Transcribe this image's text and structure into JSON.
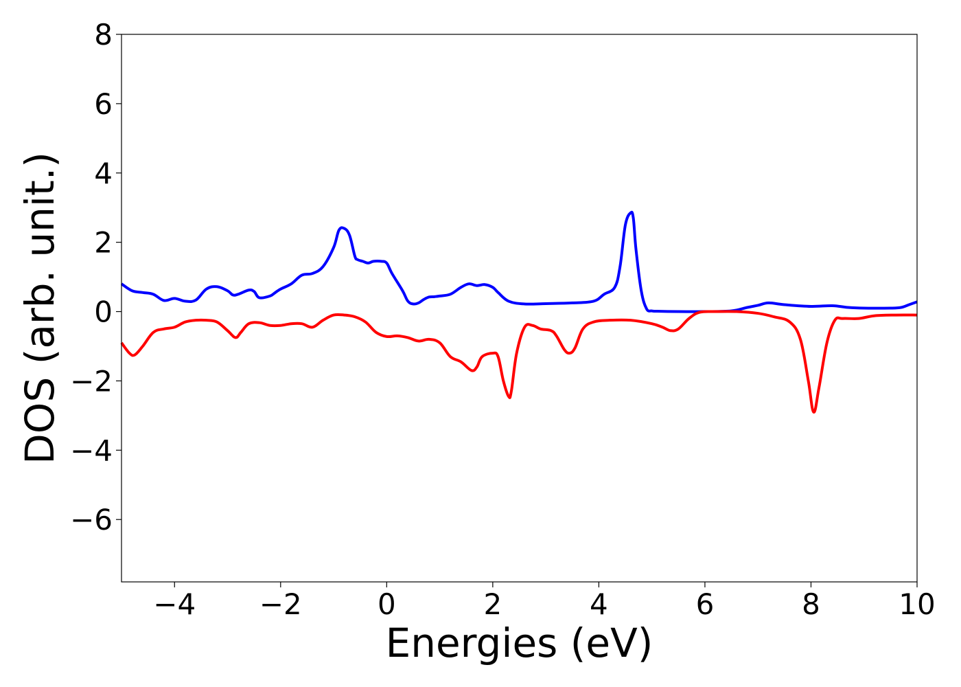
{
  "chart_data": {
    "type": "line",
    "title": "",
    "xlabel": "Energies (eV)",
    "ylabel": "DOS (arb. unit.)",
    "xlim": [
      -5,
      10
    ],
    "ylim": [
      -7.8,
      8.0
    ],
    "grid": false,
    "legend": "none",
    "x_ticks": [
      -4,
      -2,
      0,
      2,
      4,
      6,
      8,
      10
    ],
    "x_tick_labels": [
      "−4",
      "−2",
      "0",
      "2",
      "4",
      "6",
      "8",
      "10"
    ],
    "y_ticks": [
      -6,
      -4,
      -2,
      0,
      2,
      4,
      6,
      8
    ],
    "y_tick_labels": [
      "−6",
      "−4",
      "−2",
      "0",
      "2",
      "4",
      "6",
      "8"
    ],
    "series": [
      {
        "color": "#0000ff",
        "x": [
          -5.0,
          -4.8,
          -4.6,
          -4.4,
          -4.2,
          -4.0,
          -3.8,
          -3.6,
          -3.4,
          -3.2,
          -3.0,
          -2.9,
          -2.8,
          -2.6,
          -2.5,
          -2.4,
          -2.2,
          -2.1,
          -2.0,
          -1.8,
          -1.6,
          -1.4,
          -1.2,
          -1.0,
          -0.9,
          -0.8,
          -0.7,
          -0.6,
          -0.55,
          -0.45,
          -0.35,
          -0.25,
          -0.1,
          0.0,
          0.1,
          0.3,
          0.4,
          0.5,
          0.6,
          0.7,
          0.8,
          0.9,
          1.0,
          1.2,
          1.4,
          1.55,
          1.7,
          1.85,
          2.0,
          2.1,
          2.3,
          2.6,
          3.0,
          3.5,
          3.9,
          4.1,
          4.3,
          4.4,
          4.5,
          4.6,
          4.65,
          4.7,
          4.8,
          4.9,
          5.0,
          5.1,
          5.5,
          6.0,
          6.5,
          6.8,
          7.0,
          7.2,
          7.5,
          8.0,
          8.4,
          8.7,
          9.0,
          9.5,
          9.7,
          9.85,
          10.0
        ],
        "y": [
          0.8,
          0.6,
          0.55,
          0.5,
          0.32,
          0.38,
          0.3,
          0.33,
          0.65,
          0.72,
          0.6,
          0.48,
          0.5,
          0.62,
          0.58,
          0.4,
          0.45,
          0.55,
          0.65,
          0.8,
          1.05,
          1.1,
          1.3,
          1.85,
          2.35,
          2.4,
          2.2,
          1.6,
          1.5,
          1.45,
          1.4,
          1.45,
          1.45,
          1.4,
          1.1,
          0.6,
          0.3,
          0.22,
          0.25,
          0.35,
          0.42,
          0.43,
          0.45,
          0.5,
          0.7,
          0.8,
          0.75,
          0.78,
          0.7,
          0.55,
          0.3,
          0.22,
          0.23,
          0.25,
          0.3,
          0.5,
          0.7,
          1.3,
          2.5,
          2.85,
          2.7,
          1.8,
          0.6,
          0.08,
          0.02,
          0.01,
          0.0,
          0.0,
          0.02,
          0.12,
          0.18,
          0.25,
          0.2,
          0.15,
          0.17,
          0.12,
          0.1,
          0.1,
          0.12,
          0.2,
          0.28
        ]
      },
      {
        "color": "#ff0000",
        "x": [
          -5.0,
          -4.85,
          -4.75,
          -4.6,
          -4.4,
          -4.2,
          -4.0,
          -3.8,
          -3.6,
          -3.4,
          -3.2,
          -3.0,
          -2.85,
          -2.75,
          -2.6,
          -2.4,
          -2.2,
          -2.0,
          -1.8,
          -1.6,
          -1.4,
          -1.2,
          -1.0,
          -0.8,
          -0.6,
          -0.4,
          -0.2,
          0.0,
          0.2,
          0.4,
          0.6,
          0.8,
          1.0,
          1.2,
          1.4,
          1.6,
          1.7,
          1.8,
          2.0,
          2.1,
          2.2,
          2.3,
          2.35,
          2.45,
          2.6,
          2.75,
          2.9,
          3.1,
          3.2,
          3.35,
          3.45,
          3.55,
          3.7,
          3.9,
          4.2,
          4.6,
          5.0,
          5.2,
          5.35,
          5.5,
          5.7,
          5.9,
          6.2,
          6.6,
          7.0,
          7.3,
          7.6,
          7.8,
          7.95,
          8.05,
          8.15,
          8.3,
          8.45,
          8.6,
          8.9,
          9.2,
          9.6,
          10.0
        ],
        "y": [
          -0.9,
          -1.2,
          -1.25,
          -1.0,
          -0.6,
          -0.5,
          -0.45,
          -0.3,
          -0.25,
          -0.25,
          -0.3,
          -0.55,
          -0.75,
          -0.6,
          -0.35,
          -0.32,
          -0.4,
          -0.4,
          -0.35,
          -0.35,
          -0.45,
          -0.25,
          -0.1,
          -0.1,
          -0.15,
          -0.3,
          -0.6,
          -0.72,
          -0.7,
          -0.75,
          -0.85,
          -0.8,
          -0.9,
          -1.3,
          -1.45,
          -1.7,
          -1.6,
          -1.3,
          -1.2,
          -1.3,
          -2.0,
          -2.45,
          -2.3,
          -1.2,
          -0.45,
          -0.4,
          -0.5,
          -0.55,
          -0.7,
          -1.1,
          -1.2,
          -1.05,
          -0.5,
          -0.3,
          -0.25,
          -0.25,
          -0.35,
          -0.45,
          -0.55,
          -0.5,
          -0.2,
          -0.02,
          0.0,
          0.0,
          -0.05,
          -0.15,
          -0.3,
          -0.8,
          -2.0,
          -2.9,
          -2.2,
          -0.9,
          -0.25,
          -0.2,
          -0.2,
          -0.12,
          -0.1,
          -0.1
        ]
      }
    ]
  }
}
